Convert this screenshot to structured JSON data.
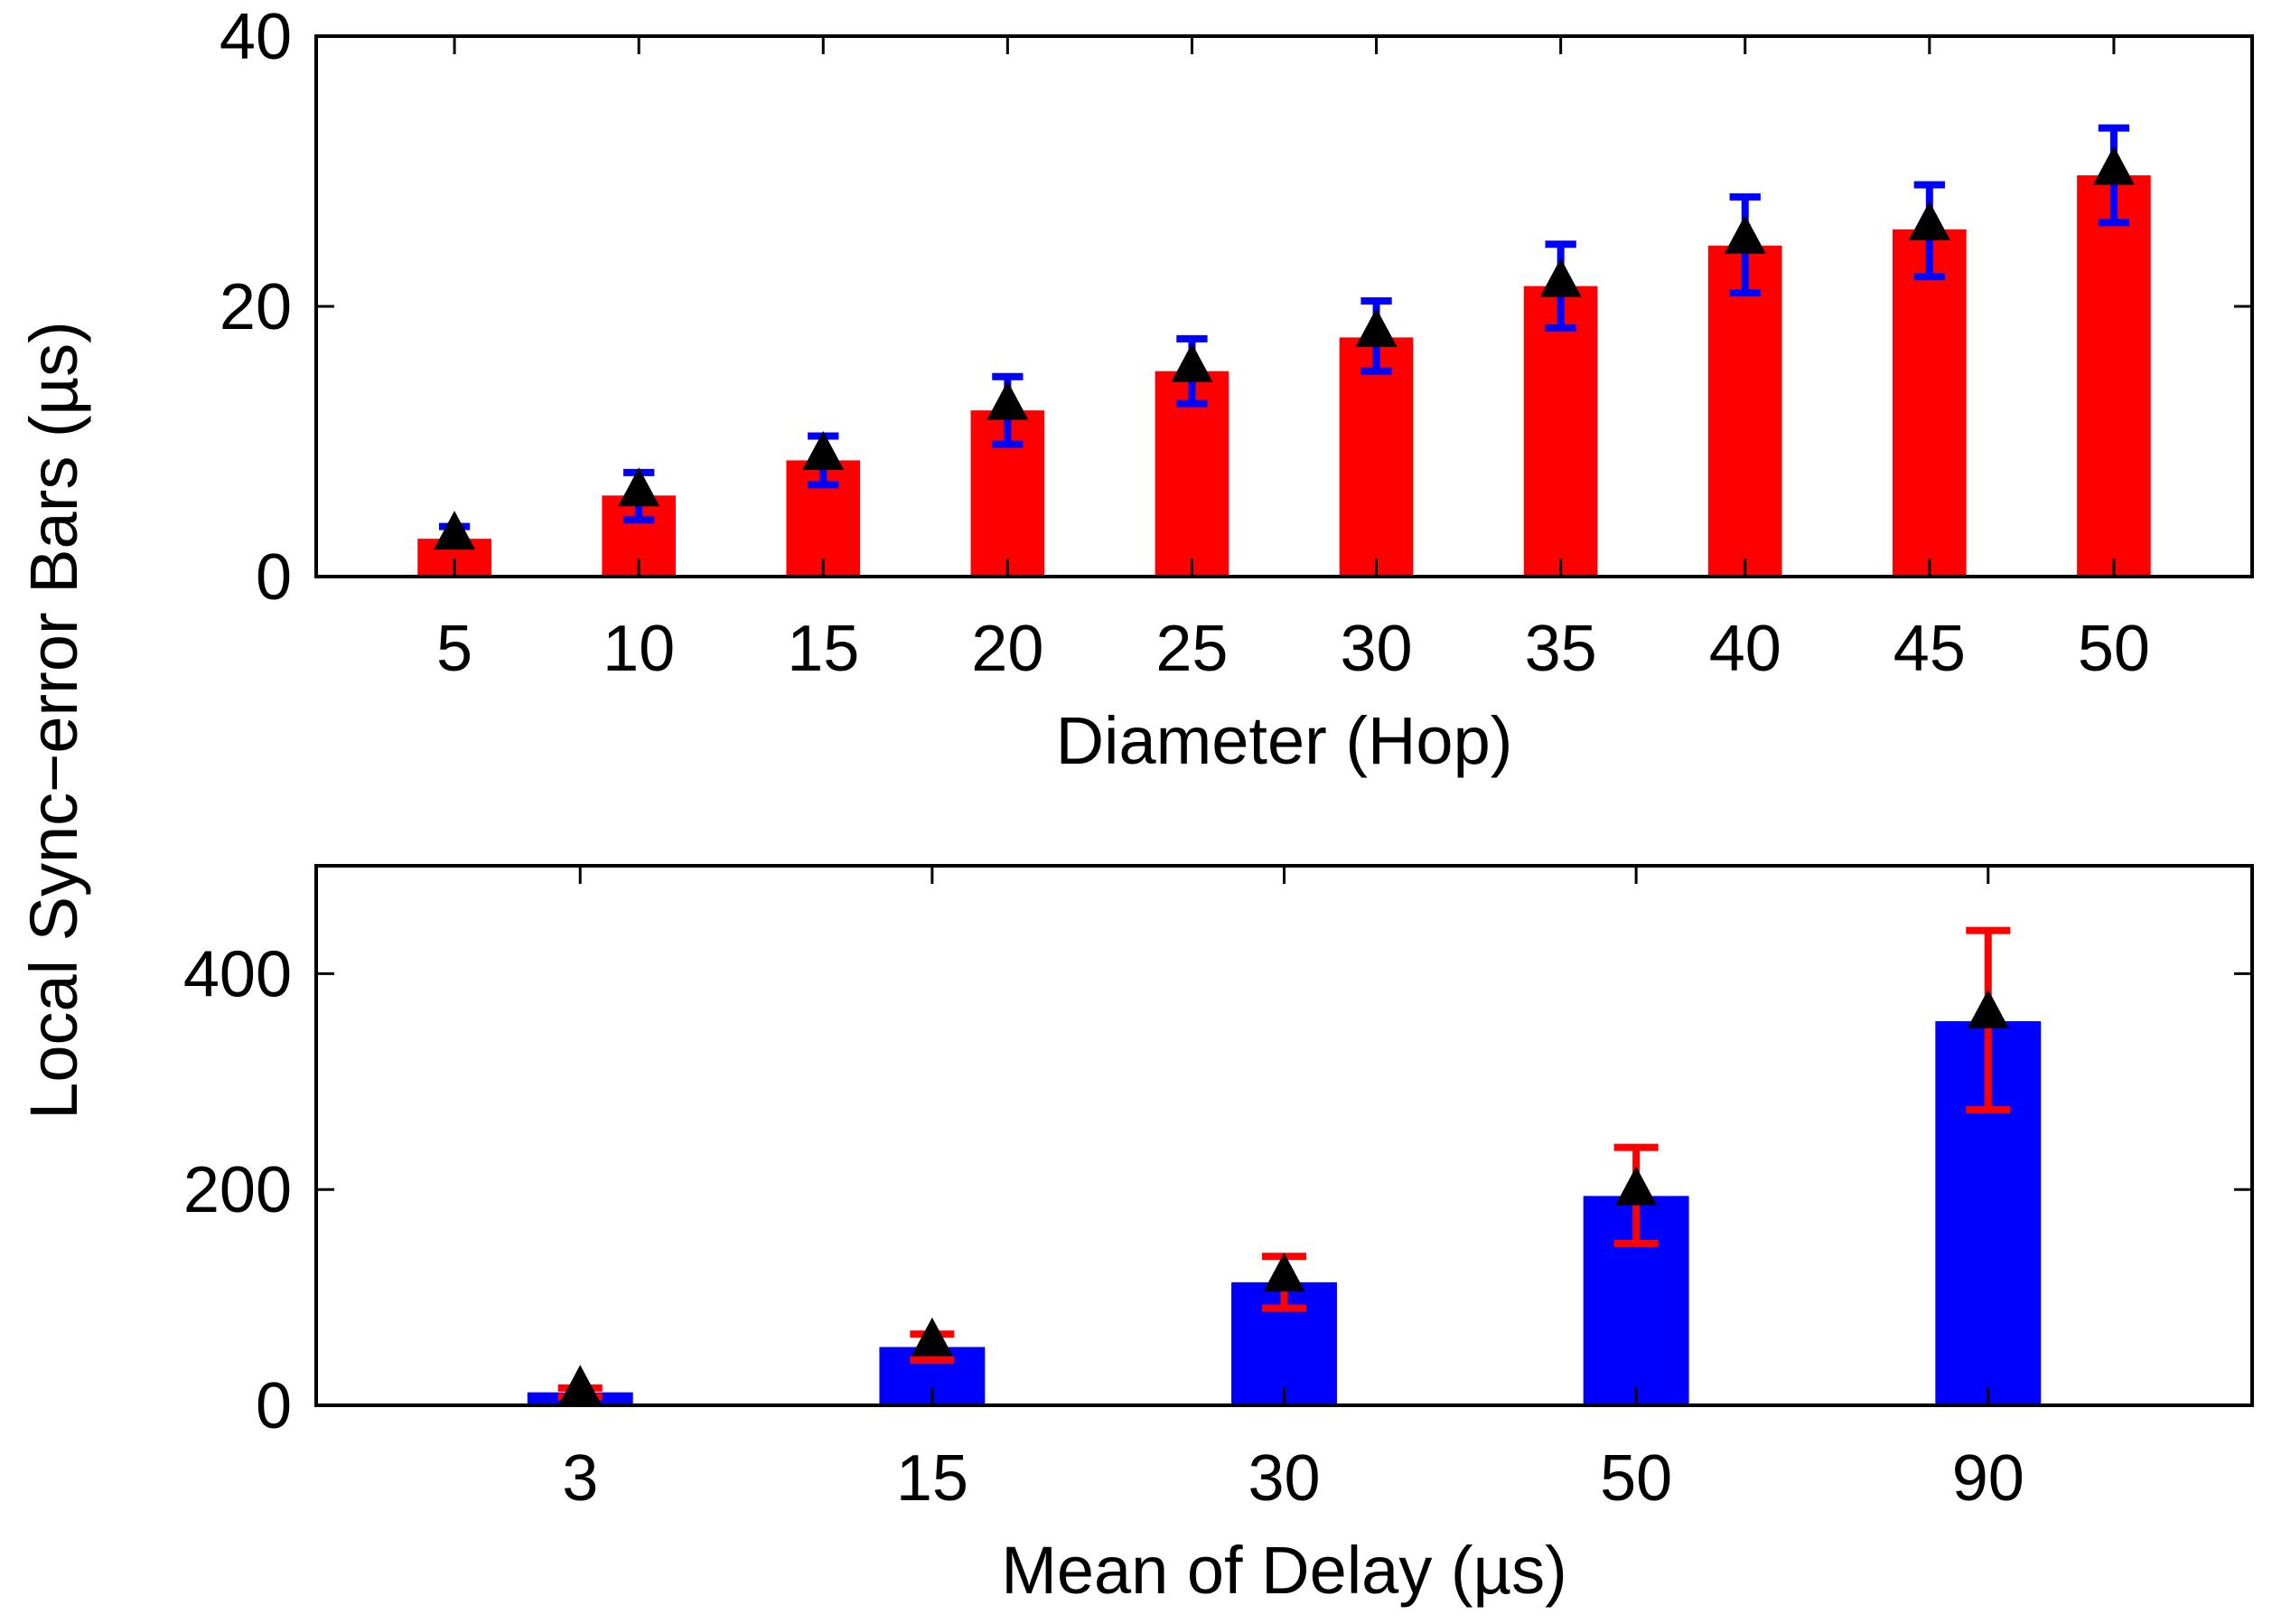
{
  "figure": {
    "shared_ylabel": "Local Sync−error Bars (µs)"
  },
  "chart_data": [
    {
      "type": "bar",
      "title": "",
      "xlabel": "Diameter (Hop)",
      "ylabel": "Local Sync−error Bars (µs)",
      "categories": [
        "5",
        "10",
        "15",
        "20",
        "25",
        "30",
        "35",
        "40",
        "45",
        "50"
      ],
      "values": [
        2.8,
        6.0,
        8.6,
        12.3,
        15.2,
        17.7,
        21.5,
        24.5,
        25.7,
        29.7
      ],
      "error_bars": {
        "lower": [
          2.4,
          4.2,
          6.8,
          9.8,
          12.8,
          15.2,
          18.4,
          21.0,
          22.2,
          26.2
        ],
        "upper": [
          3.7,
          7.7,
          10.4,
          14.8,
          17.6,
          20.4,
          24.6,
          28.1,
          29.0,
          33.2
        ]
      },
      "markers": [
        3.0,
        6.2,
        8.9,
        12.6,
        15.4,
        18.0,
        21.7,
        24.9,
        25.9,
        30.0
      ],
      "ylim": [
        0,
        40
      ],
      "yticks": [
        0,
        20,
        40
      ],
      "colors": {
        "bar": "#ff0000",
        "error_bar": "#0000ff",
        "marker": "#000000"
      }
    },
    {
      "type": "bar",
      "title": "",
      "xlabel": "Mean of Delay (µs)",
      "ylabel": "Local Sync−error Bars (µs)",
      "categories": [
        "3",
        "15",
        "30",
        "50",
        "90"
      ],
      "values": [
        12,
        54,
        114,
        194,
        356
      ],
      "error_bars": {
        "lower": [
          8,
          42,
          90,
          150,
          274
        ],
        "upper": [
          16,
          66,
          138,
          239,
          440
        ]
      },
      "markers": [
        14,
        58,
        118,
        198,
        362
      ],
      "ylim": [
        0,
        500
      ],
      "yticks": [
        0,
        200,
        400
      ],
      "colors": {
        "bar": "#0000ff",
        "error_bar": "#ff0000",
        "marker": "#000000"
      }
    }
  ]
}
